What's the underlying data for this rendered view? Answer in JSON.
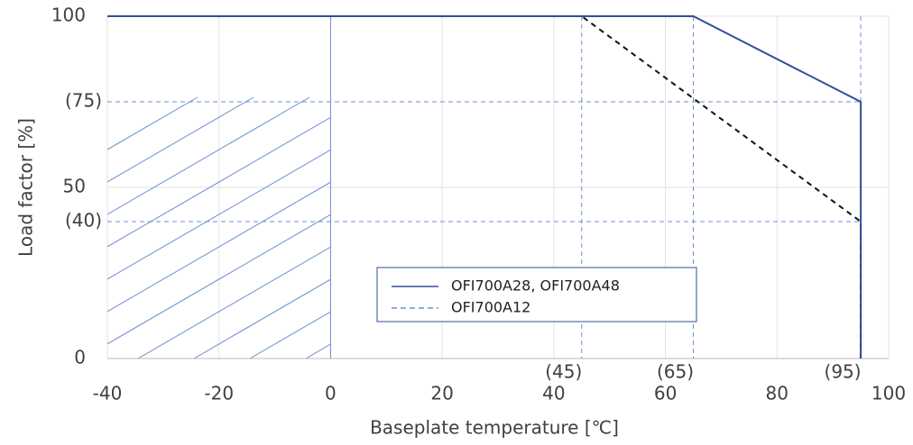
{
  "chart_data": {
    "type": "line",
    "x_label": "Baseplate temperature [℃]",
    "y_label": "Load factor [%]",
    "xlim": [
      -40,
      100
    ],
    "ylim": [
      0,
      100
    ],
    "xticks": [
      -40,
      -20,
      0,
      20,
      40,
      60,
      80,
      100
    ],
    "yticks": [
      0,
      50,
      100
    ],
    "reference_x": [
      {
        "value": 45,
        "label": "(45)"
      },
      {
        "value": 65,
        "label": "(65)"
      },
      {
        "value": 95,
        "label": "(95)"
      }
    ],
    "reference_y": [
      {
        "value": 75,
        "label": "(75)"
      },
      {
        "value": 40,
        "label": "(40)"
      }
    ],
    "hatch_region": [
      -40,
      0
    ],
    "grid": true,
    "series": [
      {
        "name": "OFI700A28, OFI700A48",
        "color": "#2f4f9a",
        "dash": false,
        "x": [
          -40,
          65,
          95,
          95
        ],
        "values": [
          100,
          100,
          75,
          0
        ]
      },
      {
        "name": "OFI700A12",
        "color": "#111111",
        "dash": true,
        "x": [
          -40,
          45,
          95,
          95
        ],
        "values": [
          100,
          100,
          40,
          0
        ]
      }
    ]
  }
}
